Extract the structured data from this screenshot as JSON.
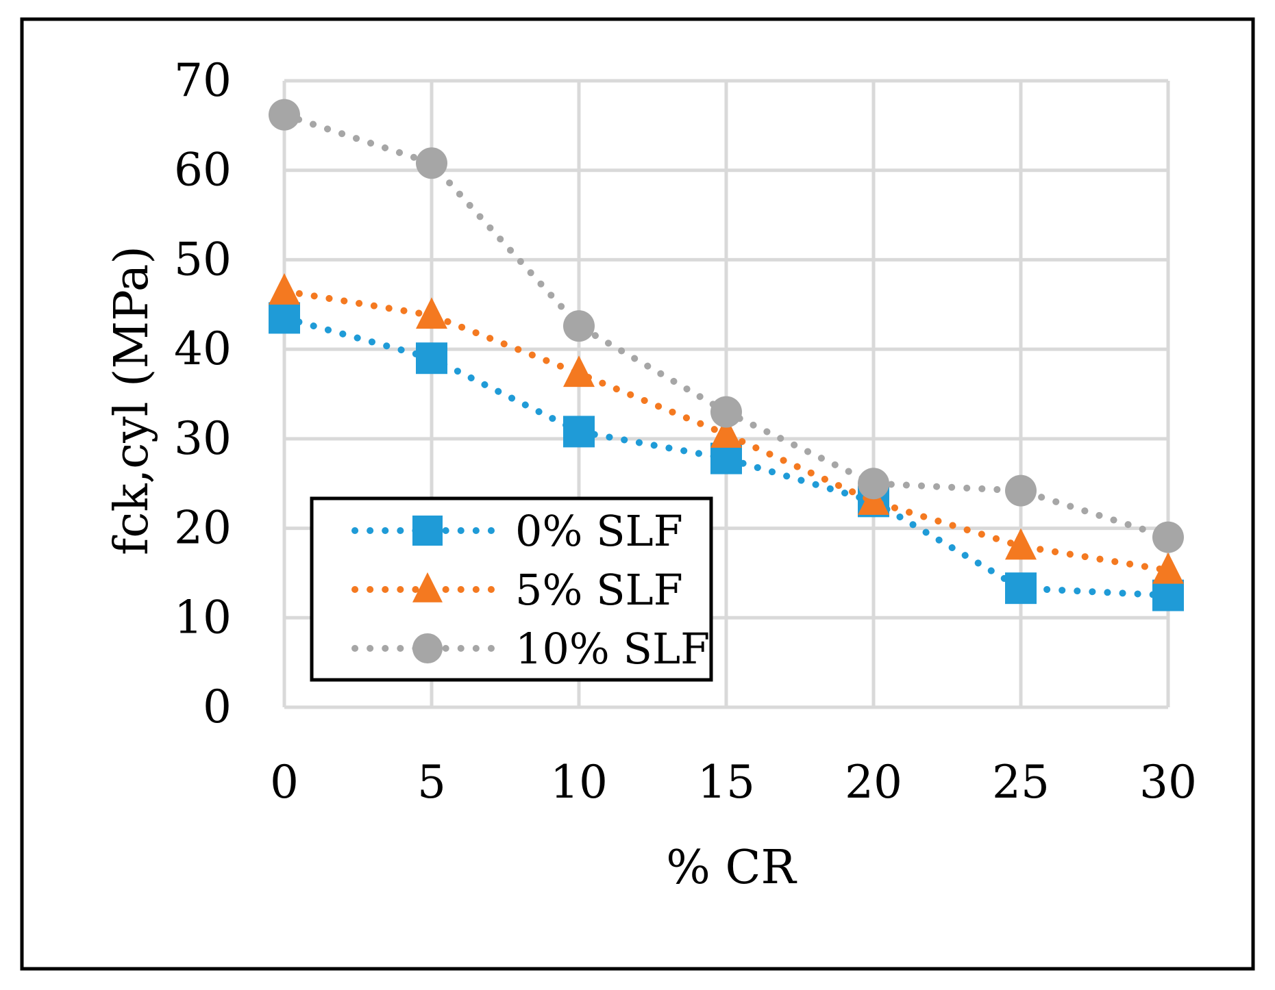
{
  "chart_data": {
    "type": "line",
    "title": "",
    "xlabel": "% CR",
    "ylabel": "fck,cyl (MPa)",
    "x": [
      0,
      5,
      10,
      15,
      20,
      25,
      30
    ],
    "xlim": [
      0,
      30
    ],
    "ylim": [
      0,
      70
    ],
    "x_ticks": [
      "0",
      "5",
      "10",
      "15",
      "20",
      "25",
      "30"
    ],
    "y_ticks": [
      "0",
      "10",
      "20",
      "30",
      "40",
      "50",
      "60",
      "70"
    ],
    "grid": true,
    "legend_position": "bottom-left",
    "series": [
      {
        "name": "0% SLF",
        "marker": "square",
        "line_style": "dotted",
        "color": "#1f9bd7",
        "values": [
          43.5,
          39.0,
          30.8,
          27.8,
          23.0,
          13.3,
          12.5
        ]
      },
      {
        "name": "5% SLF",
        "marker": "triangle",
        "line_style": "dotted",
        "color": "#f47920",
        "values": [
          46.5,
          43.8,
          37.3,
          30.5,
          23.0,
          18.0,
          15.3
        ]
      },
      {
        "name": "10% SLF",
        "marker": "circle",
        "line_style": "dotted",
        "color": "#a6a6a6",
        "values": [
          66.2,
          60.8,
          42.6,
          33.0,
          25.0,
          24.2,
          19.0
        ]
      }
    ]
  }
}
